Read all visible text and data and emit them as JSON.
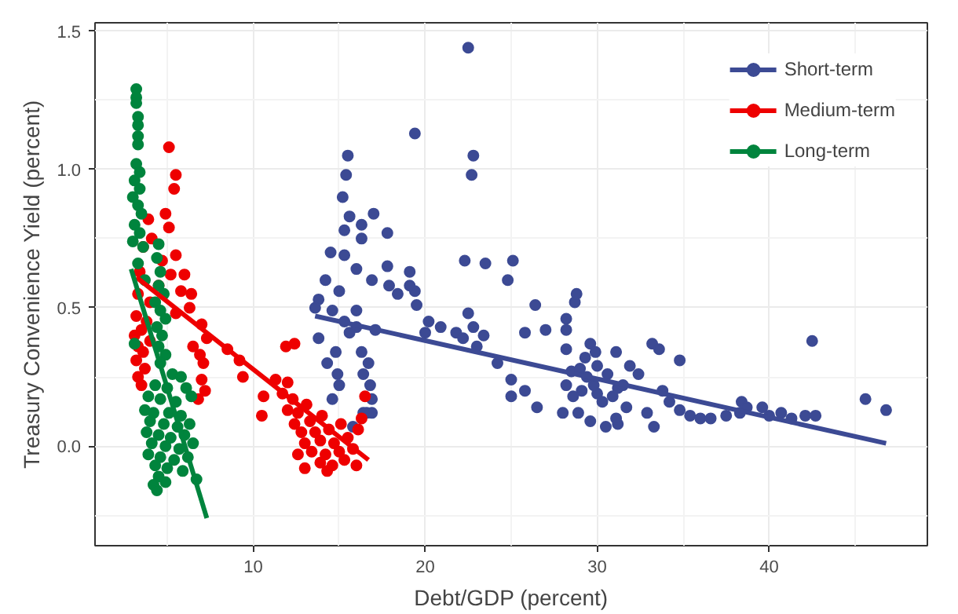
{
  "chart_data": {
    "type": "scatter",
    "xlabel": "Debt/GDP (percent)",
    "ylabel": "Treasury Convenience Yield (percent)",
    "xlim": [
      0.8,
      49.2
    ],
    "ylim": [
      -0.36,
      1.53
    ],
    "xticks": [
      10,
      20,
      30,
      40
    ],
    "yticks": [
      {
        "value": 0,
        "label": "0.0"
      },
      {
        "value": 0.5,
        "label": "0.5"
      },
      {
        "value": 1,
        "label": "1.0"
      },
      {
        "value": 1.5,
        "label": "1.5"
      }
    ],
    "grid": true,
    "legend": "top right",
    "marker": "circle",
    "series": [
      {
        "name": "Short-term",
        "color": "#3c4a94",
        "x": [
          15.5,
          15.4,
          15.2,
          15.6,
          16.3,
          17.0,
          15.3,
          16.3,
          17.8,
          14.5,
          15.3,
          16.0,
          17.8,
          14.2,
          16.9,
          15.0,
          17.9,
          18.4,
          19.1,
          19.4,
          13.8,
          13.6,
          14.6,
          16.0,
          15.3,
          16.0,
          17.1,
          13.8,
          15.6,
          14.8,
          16.3,
          14.3,
          16.7,
          14.9,
          16.4,
          15.0,
          16.8,
          14.6,
          16.9,
          16.6,
          16.9,
          16.4,
          15.8,
          19.4,
          22.5,
          22.8,
          22.7,
          22.3,
          23.5,
          25.1,
          24.8,
          19.1,
          19.5,
          20.2,
          20.9,
          20.0,
          21.8,
          22.5,
          22.8,
          23.4,
          22.2,
          23.0,
          26.4,
          28.7,
          25.8,
          27.0,
          28.2,
          24.2,
          25.0,
          25.8,
          25.0,
          26.5,
          28.8,
          28.2,
          28.2,
          29.6,
          29.9,
          31.1,
          33.2,
          33.6,
          34.8,
          31.9,
          28.5,
          29.4,
          30.6,
          32.4,
          28.2,
          29.1,
          30.0,
          31.2,
          33.8,
          28.0,
          28.9,
          29.6,
          30.9,
          31.7,
          32.9,
          30.5,
          31.2,
          33.3,
          31.1,
          34.2,
          34.8,
          35.4,
          36.0,
          36.6,
          37.5,
          38.4,
          38.7,
          38.3,
          39.6,
          40.0,
          40.7,
          41.3,
          42.1,
          42.7,
          42.5,
          45.6,
          46.8,
          29.0,
          29.8,
          30.3,
          28.6,
          30.0,
          31.5,
          29.3
        ],
        "values": [
          1.05,
          0.98,
          0.9,
          0.83,
          0.8,
          0.84,
          0.78,
          0.75,
          0.77,
          0.7,
          0.69,
          0.64,
          0.65,
          0.6,
          0.6,
          0.56,
          0.58,
          0.55,
          0.63,
          0.56,
          0.53,
          0.5,
          0.49,
          0.49,
          0.45,
          0.43,
          0.42,
          0.39,
          0.41,
          0.34,
          0.34,
          0.3,
          0.3,
          0.26,
          0.26,
          0.22,
          0.22,
          0.17,
          0.17,
          0.12,
          0.12,
          0.12,
          0.07,
          1.13,
          1.44,
          1.05,
          0.98,
          0.67,
          0.66,
          0.67,
          0.6,
          0.58,
          0.51,
          0.45,
          0.43,
          0.41,
          0.41,
          0.48,
          0.43,
          0.4,
          0.39,
          0.36,
          0.51,
          0.52,
          0.41,
          0.42,
          0.42,
          0.3,
          0.24,
          0.2,
          0.18,
          0.14,
          0.55,
          0.46,
          0.35,
          0.37,
          0.34,
          0.34,
          0.37,
          0.35,
          0.31,
          0.29,
          0.27,
          0.25,
          0.26,
          0.26,
          0.22,
          0.2,
          0.19,
          0.21,
          0.2,
          0.12,
          0.12,
          0.09,
          0.18,
          0.14,
          0.12,
          0.07,
          0.08,
          0.07,
          0.1,
          0.16,
          0.13,
          0.11,
          0.1,
          0.1,
          0.11,
          0.16,
          0.14,
          0.12,
          0.14,
          0.11,
          0.12,
          0.1,
          0.11,
          0.11,
          0.38,
          0.17,
          0.13,
          0.28,
          0.22,
          0.16,
          0.18,
          0.29,
          0.22,
          0.32
        ]
      },
      {
        "name": "Medium-term",
        "color": "#ee0000",
        "x": [
          5.1,
          5.5,
          5.4,
          4.9,
          5.1,
          3.9,
          4.1,
          5.5,
          3.6,
          4.7,
          5.2,
          6.0,
          3.4,
          4.5,
          5.8,
          3.3,
          6.4,
          4.0,
          6.3,
          5.5,
          3.2,
          3.8,
          3.5,
          3.1,
          4.0,
          3.3,
          3.6,
          3.2,
          3.7,
          3.3,
          3.5,
          7.0,
          7.3,
          6.5,
          6.9,
          7.1,
          8.5,
          9.2,
          7.0,
          7.2,
          6.8,
          9.4,
          10.6,
          10.5,
          11.3,
          12.0,
          11.7,
          12.3,
          12.0,
          12.6,
          13.1,
          12.4,
          13.3,
          14.0,
          12.8,
          13.6,
          14.4,
          15.1,
          13.0,
          13.9,
          14.7,
          15.5,
          16.1,
          13.4,
          14.2,
          15.0,
          15.8,
          12.6,
          13.9,
          14.6,
          15.3,
          13.0,
          16.0,
          14.3,
          16.3,
          16.5,
          11.9,
          12.4
        ],
        "values": [
          1.08,
          0.98,
          0.93,
          0.84,
          0.79,
          0.82,
          0.75,
          0.69,
          0.72,
          0.67,
          0.62,
          0.62,
          0.63,
          0.58,
          0.56,
          0.55,
          0.55,
          0.52,
          0.5,
          0.48,
          0.47,
          0.45,
          0.42,
          0.4,
          0.38,
          0.36,
          0.34,
          0.31,
          0.28,
          0.25,
          0.22,
          0.44,
          0.39,
          0.36,
          0.33,
          0.3,
          0.35,
          0.31,
          0.24,
          0.2,
          0.17,
          0.25,
          0.18,
          0.11,
          0.24,
          0.23,
          0.19,
          0.17,
          0.13,
          0.12,
          0.15,
          0.08,
          0.09,
          0.11,
          0.05,
          0.05,
          0.06,
          0.08,
          0.01,
          0.02,
          0.01,
          0.03,
          0.06,
          -0.02,
          -0.03,
          -0.02,
          -0.01,
          -0.03,
          -0.06,
          -0.07,
          -0.05,
          -0.08,
          -0.07,
          -0.09,
          0.1,
          0.18,
          0.36,
          0.37
        ]
      },
      {
        "name": "Long-term",
        "color": "#00843d",
        "x": [
          3.2,
          3.2,
          3.2,
          3.3,
          3.3,
          3.3,
          3.3,
          3.2,
          3.4,
          3.1,
          3.4,
          3.0,
          3.3,
          3.5,
          3.1,
          3.4,
          3.0,
          3.6,
          4.5,
          4.4,
          3.3,
          4.6,
          3.7,
          4.5,
          4.8,
          4.3,
          4.6,
          4.9,
          4.4,
          4.7,
          3.1,
          4.5,
          4.9,
          4.6,
          5.3,
          5.8,
          4.3,
          5.0,
          6.1,
          3.9,
          4.6,
          5.5,
          6.4,
          3.7,
          4.2,
          5.1,
          5.8,
          4.0,
          4.8,
          5.6,
          6.3,
          3.8,
          4.5,
          5.2,
          6.0,
          4.1,
          4.9,
          5.7,
          6.5,
          3.9,
          4.6,
          5.4,
          6.2,
          4.3,
          5.0,
          5.9,
          4.5,
          4.9,
          4.2,
          6.7,
          4.4
        ],
        "values": [
          1.29,
          1.26,
          1.24,
          1.19,
          1.16,
          1.12,
          1.09,
          1.02,
          0.99,
          0.96,
          0.93,
          0.9,
          0.87,
          0.84,
          0.8,
          0.77,
          0.74,
          0.72,
          0.73,
          0.68,
          0.66,
          0.63,
          0.6,
          0.58,
          0.55,
          0.52,
          0.49,
          0.46,
          0.43,
          0.4,
          0.37,
          0.36,
          0.33,
          0.3,
          0.26,
          0.25,
          0.22,
          0.21,
          0.21,
          0.18,
          0.17,
          0.16,
          0.18,
          0.13,
          0.12,
          0.12,
          0.11,
          0.09,
          0.08,
          0.07,
          0.08,
          0.05,
          0.04,
          0.03,
          0.04,
          0.01,
          0.0,
          -0.01,
          0.01,
          -0.03,
          -0.04,
          -0.05,
          -0.04,
          -0.07,
          -0.08,
          -0.09,
          -0.11,
          -0.13,
          -0.14,
          -0.12,
          -0.16
        ]
      },
      {
        "color": "#3c4a94",
        "type": "line",
        "marker": "none",
        "x": [
          13.6,
          46.8
        ],
        "values": [
          0.47,
          0.01
        ]
      },
      {
        "color": "#ee0000",
        "type": "line",
        "marker": "none",
        "x": [
          3.2,
          16.7
        ],
        "values": [
          0.61,
          -0.05
        ]
      },
      {
        "color": "#00843d",
        "type": "line",
        "marker": "none",
        "x": [
          2.9,
          7.3
        ],
        "values": [
          0.64,
          -0.26
        ]
      }
    ]
  }
}
